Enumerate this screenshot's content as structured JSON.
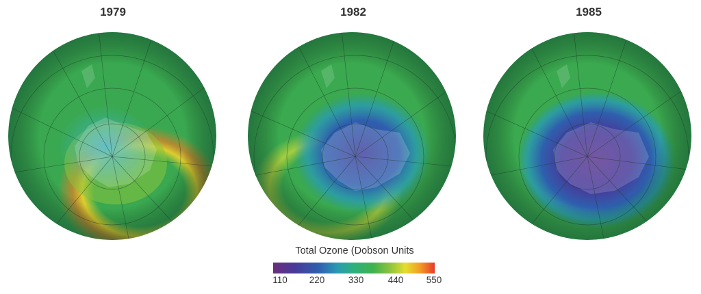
{
  "panels": [
    {
      "year": "1979"
    },
    {
      "year": "1982"
    },
    {
      "year": "1985"
    }
  ],
  "legend": {
    "title": "Total Ozone (Dobson Units",
    "ticks": [
      "110",
      "220",
      "330",
      "440",
      "550"
    ]
  },
  "colors": {
    "scale_min": "#6b2e7e",
    "low": "#463b9a",
    "mid_low": "#2a9bb3",
    "mid": "#3fb24e",
    "mid_high": "#e6dd2d",
    "scale_max": "#e8392a"
  }
}
